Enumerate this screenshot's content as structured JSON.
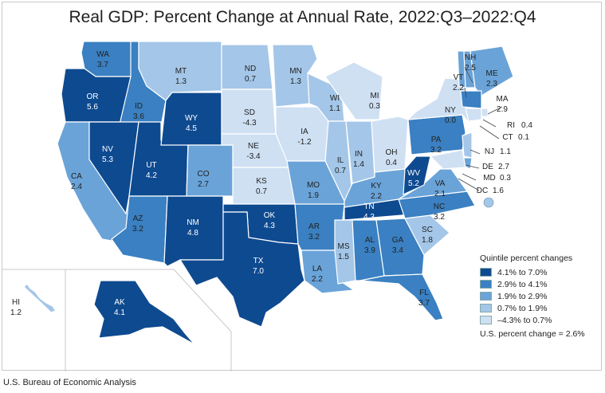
{
  "title": "Real GDP: Percent Change at Annual Rate, 2022:Q3–2022:Q4",
  "source": "U.S. Bureau of Economic Analysis",
  "colors": {
    "q5": "#0e4a90",
    "q4": "#3a80c2",
    "q3": "#6aa3d8",
    "q2": "#a4c6e8",
    "q1": "#cfe0f3",
    "border": "#ffffff",
    "frame": "#c9c9c9"
  },
  "legend": {
    "title": "Quintile percent changes",
    "items": [
      {
        "label": "4.1% to 7.0%",
        "color": "#0e4a90"
      },
      {
        "label": "2.9% to 4.1%",
        "color": "#3a80c2"
      },
      {
        "label": "1.9% to 2.9%",
        "color": "#6aa3d8"
      },
      {
        "label": "0.7% to 1.9%",
        "color": "#a4c6e8"
      },
      {
        "label": "–4.3% to 0.7%",
        "color": "#cfe0f3"
      }
    ],
    "us_change": "U.S. percent change = 2.6%"
  },
  "states": [
    {
      "abbr": "WA",
      "value": "3.7",
      "quintile": 4
    },
    {
      "abbr": "OR",
      "value": "5.6",
      "quintile": 5
    },
    {
      "abbr": "CA",
      "value": "2.4",
      "quintile": 3
    },
    {
      "abbr": "ID",
      "value": "3.6",
      "quintile": 4
    },
    {
      "abbr": "NV",
      "value": "5.3",
      "quintile": 5
    },
    {
      "abbr": "UT",
      "value": "4.2",
      "quintile": 5
    },
    {
      "abbr": "AZ",
      "value": "3.2",
      "quintile": 4
    },
    {
      "abbr": "MT",
      "value": "1.3",
      "quintile": 2
    },
    {
      "abbr": "WY",
      "value": "4.5",
      "quintile": 5
    },
    {
      "abbr": "CO",
      "value": "2.7",
      "quintile": 3
    },
    {
      "abbr": "NM",
      "value": "4.8",
      "quintile": 5
    },
    {
      "abbr": "ND",
      "value": "0.7",
      "quintile": 2
    },
    {
      "abbr": "SD",
      "value": "-4.3",
      "quintile": 1
    },
    {
      "abbr": "NE",
      "value": "-3.4",
      "quintile": 1
    },
    {
      "abbr": "KS",
      "value": "0.7",
      "quintile": 1
    },
    {
      "abbr": "OK",
      "value": "4.3",
      "quintile": 5
    },
    {
      "abbr": "TX",
      "value": "7.0",
      "quintile": 5
    },
    {
      "abbr": "MN",
      "value": "1.3",
      "quintile": 2
    },
    {
      "abbr": "IA",
      "value": "-1.2",
      "quintile": 1
    },
    {
      "abbr": "MO",
      "value": "1.9",
      "quintile": 3
    },
    {
      "abbr": "AR",
      "value": "3.2",
      "quintile": 4
    },
    {
      "abbr": "LA",
      "value": "2.2",
      "quintile": 3
    },
    {
      "abbr": "WI",
      "value": "1.1",
      "quintile": 2
    },
    {
      "abbr": "IL",
      "value": "0.7",
      "quintile": 2
    },
    {
      "abbr": "MI",
      "value": "0.3",
      "quintile": 1
    },
    {
      "abbr": "IN",
      "value": "1.4",
      "quintile": 2
    },
    {
      "abbr": "OH",
      "value": "0.4",
      "quintile": 1
    },
    {
      "abbr": "KY",
      "value": "2.2",
      "quintile": 3
    },
    {
      "abbr": "TN",
      "value": "4.3",
      "quintile": 5
    },
    {
      "abbr": "MS",
      "value": "1.5",
      "quintile": 2
    },
    {
      "abbr": "AL",
      "value": "3.9",
      "quintile": 4
    },
    {
      "abbr": "GA",
      "value": "3.4",
      "quintile": 4
    },
    {
      "abbr": "FL",
      "value": "3.7",
      "quintile": 4
    },
    {
      "abbr": "SC",
      "value": "1.8",
      "quintile": 2
    },
    {
      "abbr": "NC",
      "value": "3.2",
      "quintile": 4
    },
    {
      "abbr": "VA",
      "value": "2.1",
      "quintile": 3
    },
    {
      "abbr": "WV",
      "value": "5.2",
      "quintile": 5
    },
    {
      "abbr": "PA",
      "value": "3.2",
      "quintile": 4
    },
    {
      "abbr": "NY",
      "value": "0.0",
      "quintile": 1
    },
    {
      "abbr": "VT",
      "value": "2.2",
      "quintile": 3
    },
    {
      "abbr": "NH",
      "value": "2.5",
      "quintile": 3
    },
    {
      "abbr": "ME",
      "value": "2.3",
      "quintile": 3
    },
    {
      "abbr": "MA",
      "value": "2.9",
      "quintile": 4
    },
    {
      "abbr": "RI",
      "value": "0.4",
      "quintile": 1
    },
    {
      "abbr": "CT",
      "value": "0.1",
      "quintile": 1
    },
    {
      "abbr": "NJ",
      "value": "1.1",
      "quintile": 2
    },
    {
      "abbr": "DE",
      "value": "2.7",
      "quintile": 3
    },
    {
      "abbr": "MD",
      "value": "0.3",
      "quintile": 1
    },
    {
      "abbr": "DC",
      "value": "1.6",
      "quintile": 2
    },
    {
      "abbr": "AK",
      "value": "4.1",
      "quintile": 5
    },
    {
      "abbr": "HI",
      "value": "1.2",
      "quintile": 2
    }
  ]
}
